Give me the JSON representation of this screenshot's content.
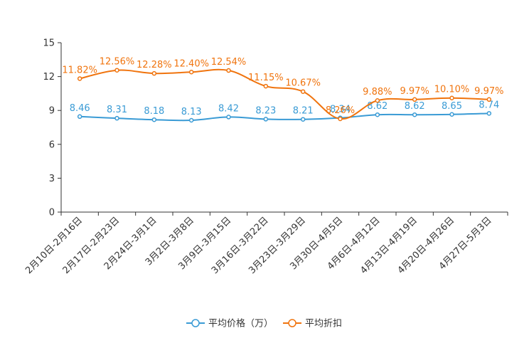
{
  "chart_data": {
    "type": "line",
    "title": "",
    "xlabel": "",
    "ylabel": "",
    "ylim": [
      0,
      15
    ],
    "yticks": [
      0,
      3,
      6,
      9,
      12,
      15
    ],
    "categories": [
      "2月10日-2月16日",
      "2月17日-2月23日",
      "2月24日-3月1日",
      "3月2日-3月8日",
      "3月9日-3月15日",
      "3月16日-3月22日",
      "3月23日-3月29日",
      "3月30日-4月5日",
      "4月6日-4月12日",
      "4月13日-4月19日",
      "4月20日-4月26日",
      "4月27日-5月3日"
    ],
    "series": [
      {
        "name": "平均价格（万）",
        "color": "#3a9bd5",
        "values": [
          8.46,
          8.31,
          8.18,
          8.13,
          8.42,
          8.23,
          8.21,
          8.34,
          8.62,
          8.62,
          8.65,
          8.74
        ],
        "labels": [
          "8.46",
          "8.31",
          "8.18",
          "8.13",
          "8.42",
          "8.23",
          "8.21",
          "8.34",
          "8.62",
          "8.62",
          "8.65",
          "8.74"
        ]
      },
      {
        "name": "平均折扣",
        "color": "#f0740e",
        "values": [
          11.82,
          12.56,
          12.28,
          12.4,
          12.54,
          11.15,
          10.67,
          8.26,
          9.88,
          9.97,
          10.1,
          9.97
        ],
        "labels": [
          "11.82%",
          "12.56%",
          "12.28%",
          "12.40%",
          "12.54%",
          "11.15%",
          "10.67%",
          "8.26%",
          "9.88%",
          "9.97%",
          "10.10%",
          "9.97%"
        ]
      }
    ],
    "grid": false,
    "legend": "bottom-center"
  }
}
